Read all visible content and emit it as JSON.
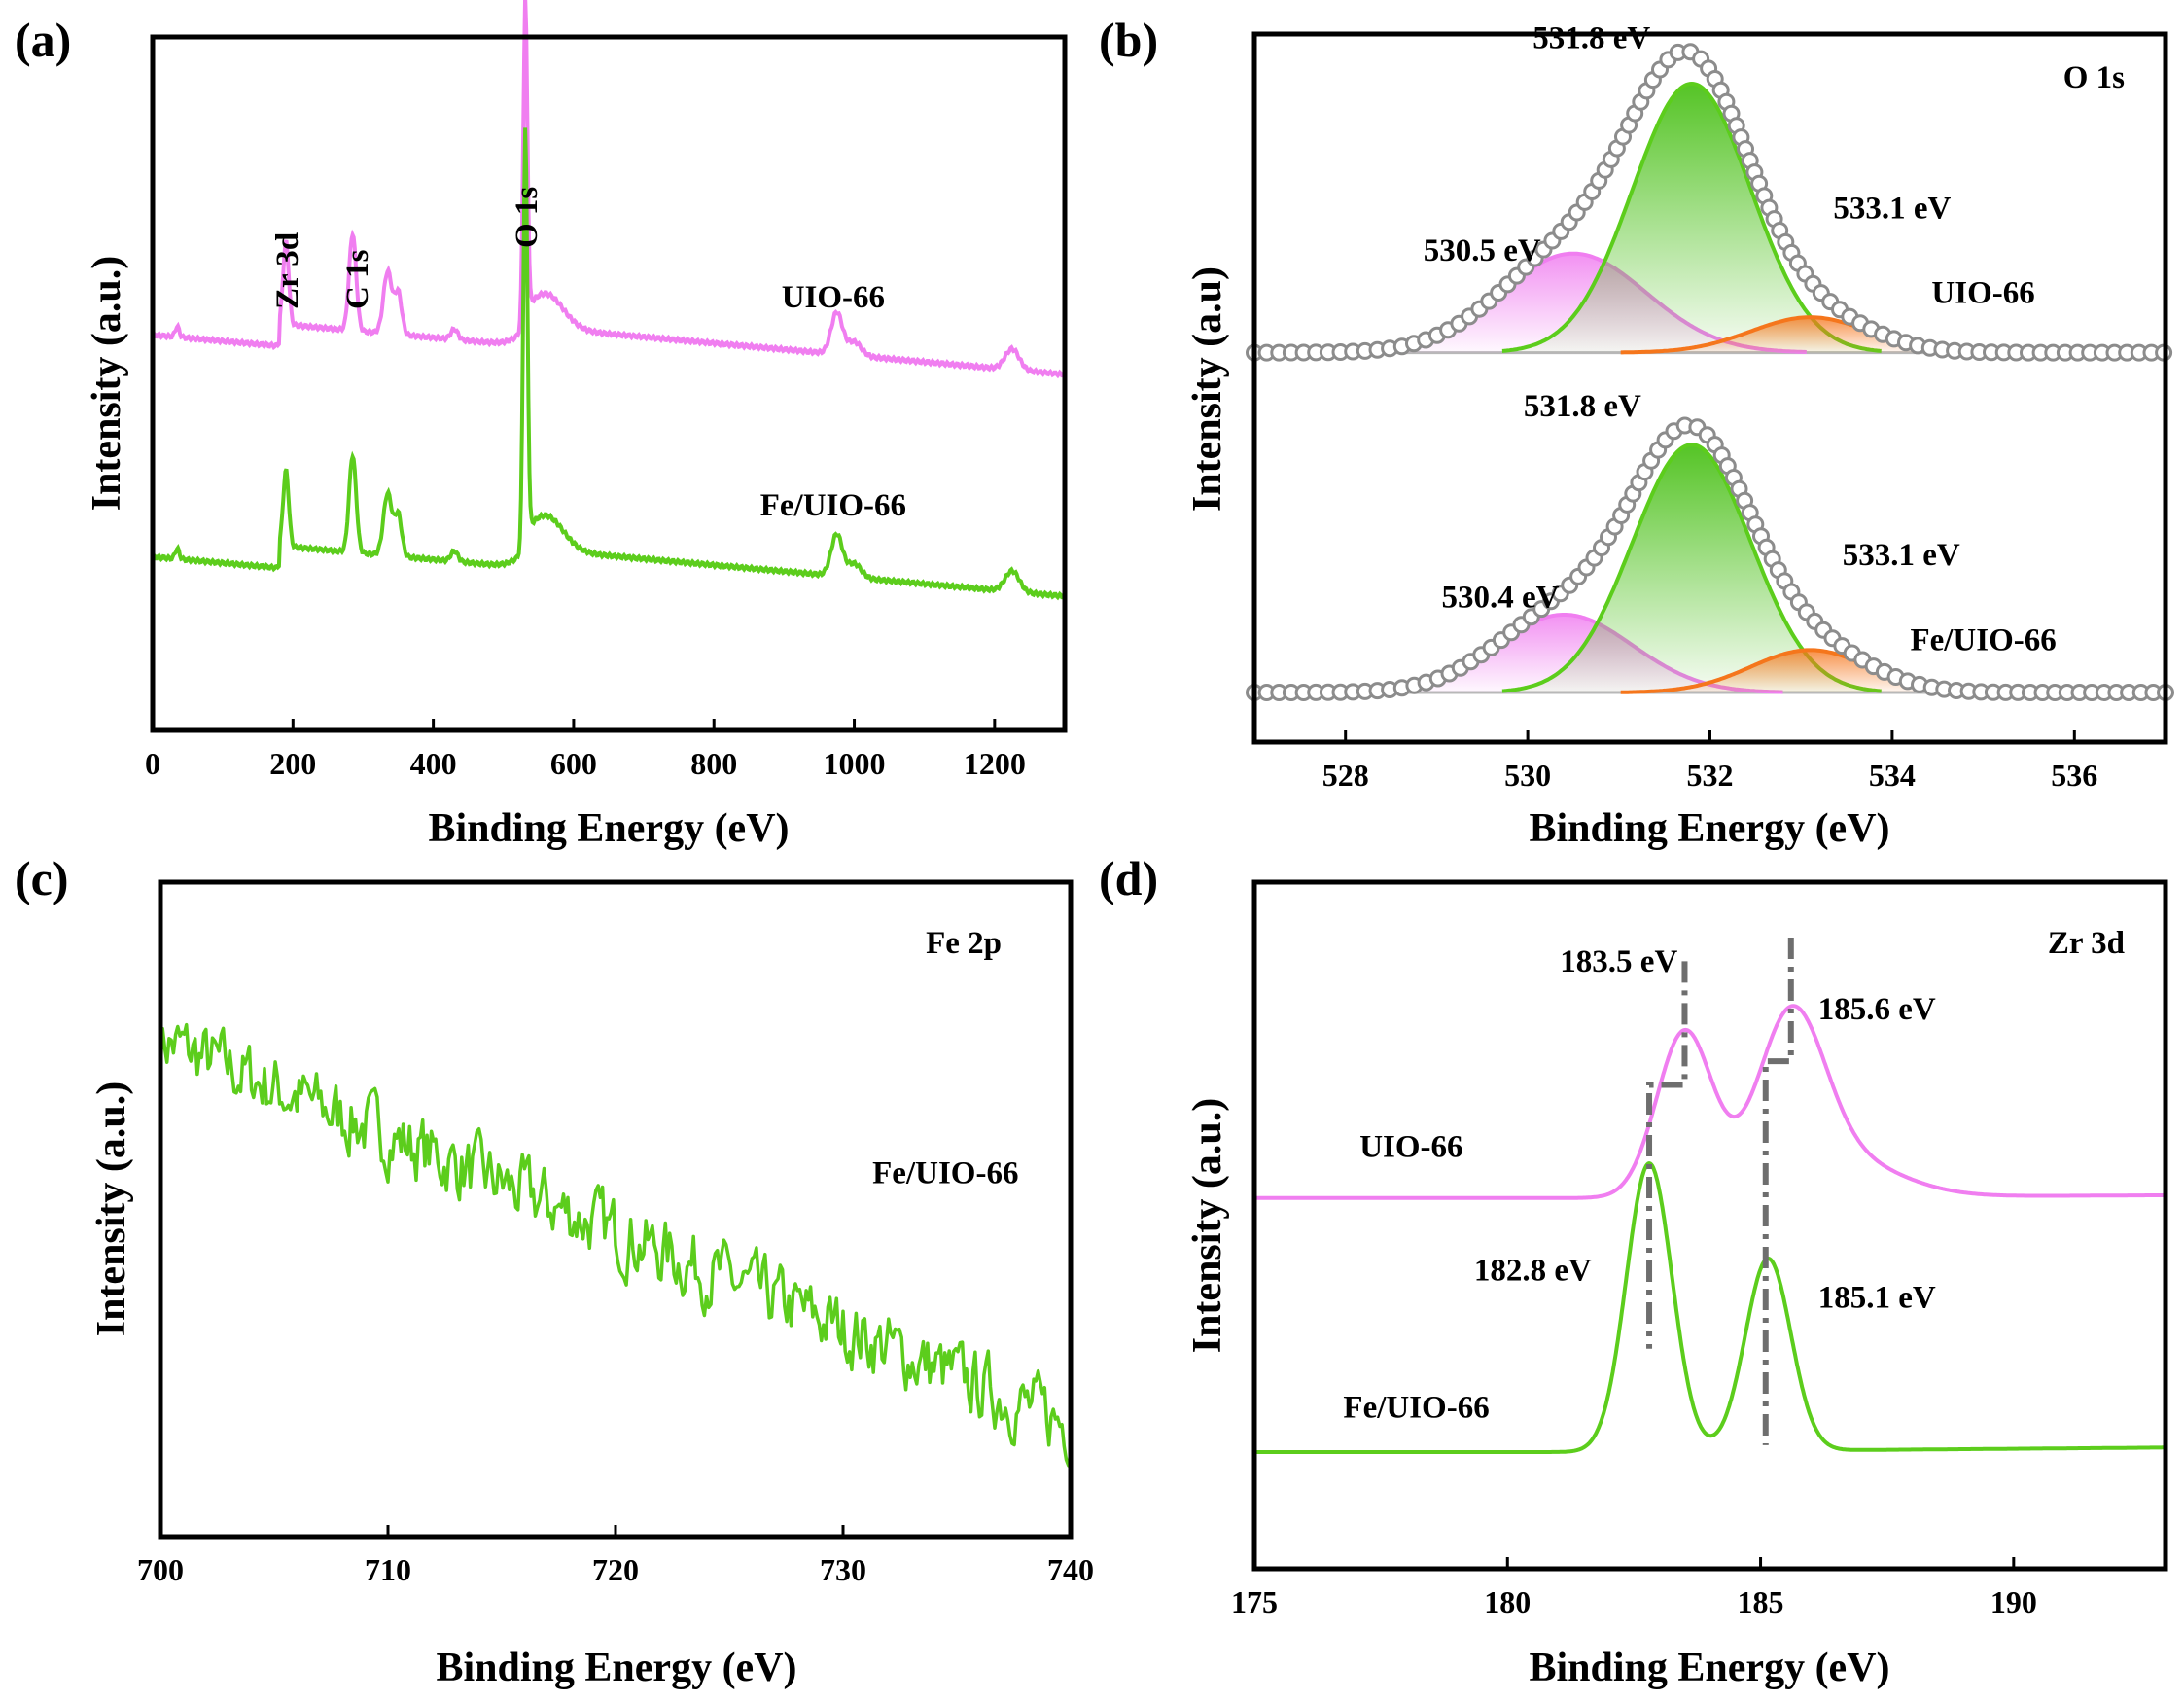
{
  "colors": {
    "uio": "#f07ef0",
    "fe": "#5ccd1c",
    "orange": "#f5761c",
    "gray_circle": "#8c8c8c",
    "guide": "#6e6e6e"
  },
  "chart_data": [
    {
      "id": "a",
      "type": "line",
      "letter": "(a)",
      "xlabel": "Binding Energy (eV)",
      "ylabel": "Intensity (a.u.)",
      "xlim": [
        0,
        1300
      ],
      "xticks": [
        0,
        200,
        400,
        600,
        800,
        1000,
        1200
      ],
      "ylim": [
        0,
        100
      ],
      "series": [
        {
          "name": "UIO-66",
          "color": "uio",
          "offset": 52,
          "tilt": -0.003,
          "base": 100,
          "scale": 1,
          "peaks": [
            [
              35,
              1.5,
              3
            ],
            [
              190,
              12,
              4
            ],
            [
              285,
              14,
              5
            ],
            [
              335,
              9,
              6
            ],
            [
              350,
              6,
              5
            ],
            [
              430,
              1.5,
              5
            ],
            [
              531,
              45,
              3
            ],
            [
              560,
              5,
              25
            ],
            [
              975,
              6,
              8
            ],
            [
              1000,
              2,
              10
            ],
            [
              1225,
              3,
              10
            ]
          ]
        },
        {
          "name": "Fe/UIO-66",
          "color": "fe",
          "offset": 20,
          "tilt": -0.003,
          "base": 100,
          "scale": 1,
          "peaks": [
            [
              35,
              1.5,
              3
            ],
            [
              190,
              11,
              4
            ],
            [
              285,
              14,
              5
            ],
            [
              335,
              9,
              6
            ],
            [
              350,
              6,
              5
            ],
            [
              430,
              1.5,
              5
            ],
            [
              531,
              58,
              3
            ],
            [
              560,
              5,
              25
            ],
            [
              975,
              6,
              8
            ],
            [
              1000,
              2,
              10
            ],
            [
              1225,
              3,
              10
            ]
          ]
        }
      ],
      "labels": [
        {
          "text": "UIO-66",
          "x": 970,
          "y": 61,
          "anchor": "middle"
        },
        {
          "text": "Fe/UIO-66",
          "x": 970,
          "y": 31,
          "anchor": "middle"
        }
      ],
      "peak_labels": [
        {
          "text": "Zr 3d",
          "x": 190
        },
        {
          "text": "C 1s",
          "x": 290
        },
        {
          "text": "O 1s",
          "x": 531
        }
      ]
    },
    {
      "id": "b",
      "type": "line",
      "letter": "(b)",
      "title": "O 1s",
      "xlabel": "Binding Energy (eV)",
      "ylabel": "Intensity (a.u)",
      "xlim": [
        527,
        537
      ],
      "xticks": [
        528,
        530,
        532,
        534,
        536
      ],
      "ylim": [
        0,
        100
      ],
      "stacks": [
        {
          "name": "UIO-66",
          "offset": 55,
          "components": [
            {
              "center": 530.5,
              "amp": 14,
              "sigma": 0.8,
              "color": "uio"
            },
            {
              "center": 531.8,
              "amp": 38,
              "sigma": 0.65,
              "color": "fe"
            },
            {
              "center": 533.1,
              "amp": 5,
              "sigma": 0.65,
              "color": "orange"
            }
          ],
          "labels": [
            {
              "text": "531.8 eV",
              "x": 530.7,
              "y": 98
            },
            {
              "text": "530.5 eV",
              "x": 529.5,
              "y": 68
            },
            {
              "text": "533.1 eV",
              "x": 534.0,
              "y": 74
            },
            {
              "text": "UIO-66",
              "x": 535.0,
              "y": 62
            }
          ]
        },
        {
          "name": "Fe/UIO-66",
          "offset": 7,
          "components": [
            {
              "center": 530.4,
              "amp": 11,
              "sigma": 0.75,
              "color": "uio"
            },
            {
              "center": 531.8,
              "amp": 35,
              "sigma": 0.65,
              "color": "fe"
            },
            {
              "center": 533.1,
              "amp": 6,
              "sigma": 0.65,
              "color": "orange"
            }
          ],
          "labels": [
            {
              "text": "531.8 eV",
              "x": 530.6,
              "y": 46
            },
            {
              "text": "530.4 eV",
              "x": 529.7,
              "y": 19
            },
            {
              "text": "533.1 eV",
              "x": 534.1,
              "y": 25
            },
            {
              "text": "Fe/UIO-66",
              "x": 535.0,
              "y": 13
            }
          ]
        }
      ]
    },
    {
      "id": "c",
      "type": "line",
      "letter": "(c)",
      "title": "Fe 2p",
      "xlabel": "Binding Energy (eV)",
      "ylabel": "Intensity (a.u.)",
      "xlim": [
        700,
        740
      ],
      "xticks": [
        700,
        710,
        720,
        730,
        740
      ],
      "ylim": [
        0,
        100
      ],
      "series": [
        {
          "name": "Fe/UIO-66",
          "color": "fe",
          "start": 76,
          "end": 17,
          "noise": 4.5,
          "points": 420
        }
      ],
      "labels": [
        {
          "text": "Fe/UIO-66",
          "x": 734.5,
          "y": 54
        }
      ]
    },
    {
      "id": "d",
      "type": "line",
      "letter": "(d)",
      "title": "Zr 3d",
      "xlabel": "Binding Energy (eV)",
      "ylabel": "Intensity (a.u.)",
      "xlim": [
        175,
        193
      ],
      "xticks": [
        175,
        180,
        185,
        190
      ],
      "ylim": [
        0,
        100
      ],
      "series": [
        {
          "name": "UIO-66",
          "color": "uio",
          "offset": 54,
          "slope": 0.08,
          "xstart": 183,
          "peaks": [
            [
              183.5,
              24,
              0.55
            ],
            [
              185.6,
              23,
              0.65
            ],
            [
              186.4,
              6,
              1.2
            ]
          ]
        },
        {
          "name": "Fe/UIO-66",
          "color": "fe",
          "offset": 17,
          "slope": 0.12,
          "xstart": 182,
          "peaks": [
            [
              182.8,
              42,
              0.45
            ],
            [
              185.15,
              28,
              0.45
            ]
          ]
        }
      ],
      "labels": [
        {
          "text": "UIO-66",
          "x": 178.1,
          "y": 60,
          "anchor": "middle"
        },
        {
          "text": "Fe/UIO-66",
          "x": 178.2,
          "y": 22,
          "anchor": "middle"
        },
        {
          "text": "183.5 eV",
          "x": 182.2,
          "y": 87,
          "anchor": "middle"
        },
        {
          "text": "185.6 eV",
          "x": 187.3,
          "y": 80,
          "anchor": "middle"
        },
        {
          "text": "182.8 eV",
          "x": 180.5,
          "y": 42,
          "anchor": "middle"
        },
        {
          "text": "185.1 eV",
          "x": 187.3,
          "y": 38,
          "anchor": "middle"
        }
      ],
      "guides": [
        {
          "top": 183.5,
          "bottom": 182.8
        },
        {
          "top": 185.6,
          "bottom": 185.1
        }
      ]
    }
  ]
}
